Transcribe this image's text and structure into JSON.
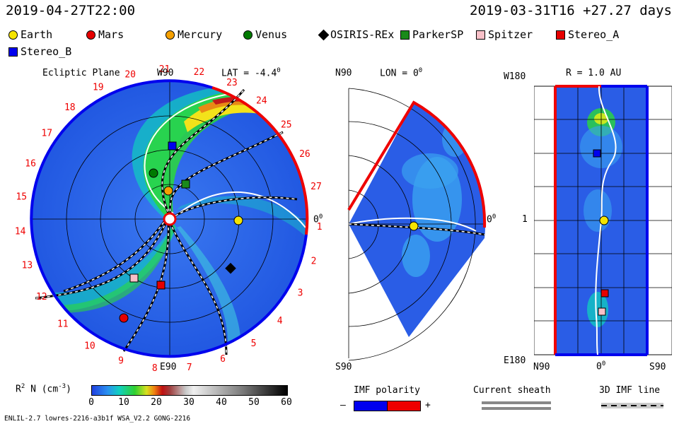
{
  "header": {
    "left_time": "2019-04-27T22:00",
    "right_time": "2019-03-31T16 +27.27 days"
  },
  "legend": [
    {
      "label": "Earth",
      "shape": "circle",
      "color": "#f5e400"
    },
    {
      "label": "Mars",
      "shape": "circle",
      "color": "#e60000"
    },
    {
      "label": "Mercury",
      "shape": "circle",
      "color": "#f5a000"
    },
    {
      "label": "Venus",
      "shape": "circle",
      "color": "#007a00"
    },
    {
      "label": "OSIRIS-REx",
      "shape": "diamond",
      "color": "#000000"
    },
    {
      "label": "ParkerSP",
      "shape": "square",
      "color": "#1a8a1a"
    },
    {
      "label": "Spitzer",
      "shape": "square",
      "color": "#f8c0c8"
    },
    {
      "label": "Stereo_A",
      "shape": "square",
      "color": "#e60000"
    },
    {
      "label": "Stereo_B",
      "shape": "square",
      "color": "#0000ee"
    }
  ],
  "ecliptic": {
    "title": "Ecliptic Plane",
    "w90": "W90",
    "e90": "E90",
    "lat": "LAT = -4.4",
    "lat_sup": "0",
    "zero": "0",
    "zero_sup": "0",
    "day_labels": [
      "1",
      "2",
      "3",
      "4",
      "5",
      "6",
      "7",
      "8",
      "9",
      "10",
      "11",
      "12",
      "13",
      "14",
      "15",
      "16",
      "17",
      "18",
      "19",
      "20",
      "21",
      "22",
      "23",
      "24",
      "25",
      "26",
      "27"
    ]
  },
  "meridional": {
    "n90": "N90",
    "s90": "S90",
    "lon": "LON = 0",
    "lon_sup": "0",
    "zero": "0",
    "zero_sup": "0"
  },
  "radial": {
    "w180": "W180",
    "e180": "E180",
    "r": "R = 1.0 AU",
    "n90": "N90",
    "zero": "0",
    "zero_sup": "0",
    "s90": "S90",
    "one": "1"
  },
  "colorbar": {
    "label": "R",
    "label_sup": "2",
    "label_rest": " N (cm",
    "label_sup2": "-3",
    "label_end": ")",
    "ticks": [
      "0",
      "10",
      "20",
      "30",
      "40",
      "50",
      "60"
    ],
    "min": 0,
    "max": 60
  },
  "imf": {
    "polarity_title": "IMF polarity",
    "minus": "–",
    "plus": "+",
    "sheath_title": "Current sheath",
    "line_title": "3D IMF line",
    "neg_color": "#0000ee",
    "pos_color": "#ee0000"
  },
  "footer": {
    "left": "ENLIL-2.7 lowres-2216-a3b1f WSA_V2.2 GONG-2216"
  }
}
